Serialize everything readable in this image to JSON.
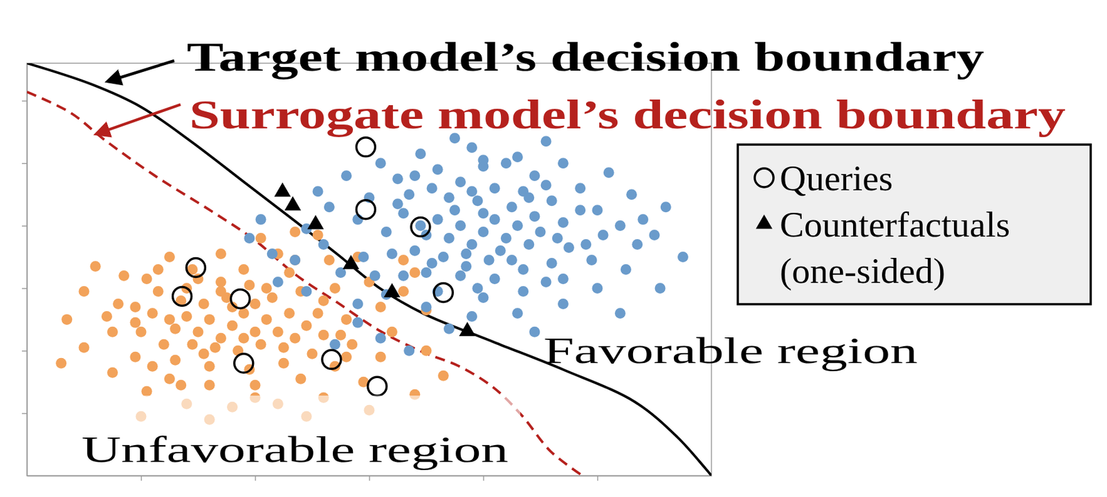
{
  "chart_data": {
    "type": "scatter",
    "xlim": [
      0,
      6
    ],
    "ylim": [
      0,
      6.6
    ],
    "xticks": [
      1,
      2,
      3,
      4,
      5
    ],
    "yticks": [
      1,
      2,
      3,
      4,
      5,
      6
    ],
    "tick_labels": false,
    "legend": "right",
    "annotations": [
      "Favorable region",
      "Unfavorable region"
    ],
    "series": [
      {
        "type": "scatter",
        "marker": "circle",
        "color": "#f2a25a",
        "x": [
          1.8,
          1.6,
          2.0,
          1.7,
          1.9,
          1.5,
          2.1,
          1.8,
          1.65,
          2.05,
          1.4,
          2.2,
          1.75,
          2.0,
          1.45,
          2.3,
          1.55,
          1.85,
          1.3,
          2.35,
          1.1,
          1.2,
          1.15,
          1.4,
          1.7,
          2.1,
          2.4,
          2.55,
          2.6,
          2.5,
          2.25,
          1.95,
          1.6,
          1.3,
          1.0,
          0.95,
          1.05,
          1.45,
          1.9,
          2.3,
          2.7,
          2.8,
          2.85,
          2.7,
          2.4,
          2.0,
          1.6,
          1.25,
          0.95,
          0.75,
          0.8,
          0.85,
          1.25,
          1.7,
          2.2,
          2.65,
          3.0,
          3.1,
          3.2,
          3.1,
          2.95,
          2.6,
          2.2,
          1.8,
          1.4,
          1.05,
          0.75,
          0.5,
          0.35,
          0.5,
          0.6,
          3.5,
          3.65,
          3.4,
          3.3,
          0.3,
          1.0,
          1.6,
          2.45,
          3.0,
          2.9,
          2.55,
          3.3,
          3.5,
          2.35,
          2.05,
          3.4,
          1.35,
          2.15,
          1.55,
          2.45,
          1.25,
          1.9,
          2.25,
          1.7,
          0.95,
          2.75,
          1.5,
          2.6,
          1.1,
          2.0,
          1.95,
          1.35,
          2.8,
          0.7,
          2.35,
          1.15
        ],
        "values": [
          2.4,
          2.5,
          2.3,
          2.2,
          2.6,
          2.3,
          2.5,
          2.7,
          2.05,
          2.1,
          2.55,
          2.3,
          2.85,
          2.75,
          2.1,
          2.6,
          2.75,
          2.0,
          2.35,
          2.2,
          2.6,
          2.1,
          2.95,
          3.0,
          3.1,
          3.0,
          2.95,
          2.6,
          2.25,
          1.95,
          1.8,
          1.7,
          1.75,
          1.85,
          2.3,
          2.7,
          3.15,
          3.3,
          3.3,
          3.25,
          3.0,
          2.5,
          2.1,
          1.75,
          1.55,
          1.45,
          1.45,
          1.55,
          1.9,
          2.3,
          2.75,
          3.2,
          3.5,
          3.55,
          3.55,
          3.45,
          3.1,
          2.7,
          2.3,
          1.9,
          1.5,
          1.25,
          1.15,
          1.1,
          1.15,
          1.35,
          1.65,
          2.05,
          2.5,
          2.95,
          3.35,
          2.0,
          1.6,
          1.3,
          2.95,
          1.8,
          0.95,
          0.9,
          0.95,
          1.05,
          3.5,
          3.85,
          3.45,
          2.65,
          3.9,
          3.8,
          3.25,
          2.8,
          2.85,
          1.95,
          2.4,
          2.5,
          2.2,
          2.05,
          2.95,
          2.45,
          2.25,
          3.15,
          2.8,
          1.75,
          1.25,
          3.05,
          1.45,
          1.9,
          2.55,
          3.45,
          3.3
        ]
      },
      {
        "type": "scatter",
        "marker": "circle",
        "color": "#6a9bcb",
        "x": [
          4.0,
          3.8,
          4.2,
          3.9,
          4.1,
          3.7,
          4.3,
          4.0,
          3.85,
          4.15,
          3.6,
          4.4,
          3.95,
          4.25,
          3.65,
          4.45,
          3.75,
          4.05,
          3.5,
          4.5,
          3.3,
          3.4,
          3.35,
          3.55,
          3.8,
          4.1,
          4.35,
          4.6,
          4.7,
          4.75,
          4.6,
          4.35,
          4.1,
          3.8,
          3.5,
          3.2,
          3.15,
          3.25,
          3.6,
          4.0,
          4.45,
          4.85,
          5.0,
          5.05,
          4.95,
          4.7,
          4.35,
          4.0,
          3.6,
          3.3,
          2.95,
          2.9,
          3.0,
          3.1,
          3.45,
          3.9,
          4.3,
          4.7,
          5.1,
          5.3,
          5.4,
          5.35,
          5.25,
          5.0,
          4.7,
          4.3,
          3.9,
          3.5,
          3.15,
          2.75,
          2.6,
          2.65,
          2.8,
          3.75,
          4.55,
          5.6,
          5.75,
          5.55,
          5.2,
          4.45,
          3.7,
          2.9,
          2.45,
          2.35,
          2.55,
          2.2,
          2.45,
          2.9,
          3.1,
          2.05,
          1.95,
          2.7,
          3.35,
          2.15,
          3.7,
          4.25,
          3.45,
          4.55,
          4.85,
          3.95,
          4.55,
          3.25,
          5.2,
          4.0,
          3.4,
          4.9,
          3.9,
          4.2,
          5.5,
          3.05,
          4.65,
          3.55,
          4.4,
          3.85
        ],
        "values": [
          3.9,
          4.0,
          3.8,
          3.7,
          4.1,
          3.8,
          4.0,
          4.2,
          3.55,
          3.6,
          4.1,
          3.7,
          4.4,
          4.3,
          3.5,
          4.15,
          4.25,
          3.45,
          3.85,
          3.9,
          4.2,
          3.6,
          4.5,
          4.6,
          4.7,
          4.6,
          4.55,
          4.4,
          4.05,
          3.65,
          3.4,
          3.3,
          3.15,
          3.2,
          3.25,
          3.55,
          3.9,
          4.75,
          4.9,
          4.95,
          4.8,
          4.6,
          4.25,
          3.85,
          3.45,
          3.15,
          2.95,
          2.85,
          2.95,
          3.2,
          3.5,
          4.1,
          4.45,
          5.0,
          5.15,
          5.25,
          5.1,
          5.0,
          4.85,
          4.5,
          4.1,
          3.7,
          3.3,
          3.0,
          2.75,
          2.6,
          2.55,
          2.7,
          2.9,
          3.25,
          3.7,
          4.3,
          4.8,
          5.4,
          5.35,
          4.3,
          3.5,
          3.0,
          2.6,
          2.3,
          2.35,
          2.75,
          3.95,
          3.45,
          4.55,
          3.1,
          2.95,
          2.45,
          2.2,
          4.1,
          3.8,
          2.1,
          2.0,
          3.55,
          4.45,
          3.45,
          4.0,
          4.65,
          4.25,
          3.0,
          3.1,
          4.35,
          4.0,
          5.05,
          4.8,
          3.7,
          4.55,
          5.0,
          3.85,
          3.2,
          3.8,
          3.4,
          4.45,
          3.35
        ]
      },
      {
        "type": "scatter",
        "name": "Queries",
        "marker": "open_circle",
        "color": "#000000",
        "x": [
          2.97,
          2.97,
          3.45,
          3.65,
          1.48,
          1.36,
          1.87,
          1.9,
          2.67,
          3.07
        ],
        "values": [
          5.26,
          4.26,
          3.98,
          2.93,
          3.33,
          2.87,
          2.83,
          1.8,
          1.86,
          1.43
        ]
      },
      {
        "type": "scatter",
        "name": "Counterfactuals (one-sided)",
        "marker": "triangle",
        "color": "#000000",
        "x": [
          2.24,
          2.33,
          2.53,
          2.84,
          3.2,
          3.86
        ],
        "values": [
          4.54,
          4.32,
          4.02,
          3.38,
          2.93,
          2.31
        ]
      },
      {
        "type": "line",
        "name": "Target model’s decision boundary",
        "line_style": "solid",
        "color": "#000000",
        "x": [
          0,
          0.57,
          1.0,
          1.43,
          1.93,
          2.36,
          2.73,
          3.1,
          3.48,
          4.09,
          4.71,
          5.33,
          5.7,
          5.95,
          6.0
        ],
        "values": [
          6.6,
          6.26,
          5.9,
          5.36,
          4.66,
          4.06,
          3.53,
          2.99,
          2.59,
          2.14,
          1.69,
          1.18,
          0.62,
          0.11,
          0
        ]
      },
      {
        "type": "line",
        "name": "Surrogate model’s decision boundary",
        "line_style": "dashed",
        "color": "#b5211d",
        "x": [
          0,
          0.38,
          0.69,
          1.13,
          1.62,
          1.99,
          2.36,
          2.73,
          3.1,
          3.48,
          3.79,
          4.09,
          4.34,
          4.59,
          4.87
        ],
        "values": [
          6.14,
          5.81,
          5.36,
          4.79,
          4.23,
          3.78,
          3.21,
          2.76,
          2.31,
          1.97,
          1.75,
          1.41,
          0.96,
          0.39,
          0
        ]
      }
    ]
  }
}
